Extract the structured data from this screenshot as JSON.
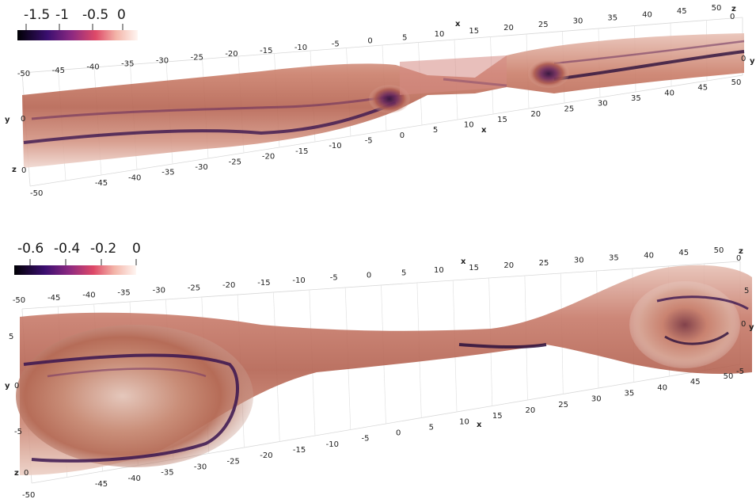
{
  "top": {
    "colorbar": {
      "ticks": [
        "-1.5",
        "-1",
        "-0.5",
        "0"
      ]
    },
    "x_ticks_top": [
      "-50",
      "-45",
      "-40",
      "-35",
      "-30",
      "-25",
      "-20",
      "-15",
      "-10",
      "-5",
      "0",
      "5",
      "10",
      "15",
      "20",
      "25",
      "30",
      "35",
      "40",
      "45",
      "50"
    ],
    "x_ticks_bottom": [
      "-45",
      "-40",
      "-35",
      "-30",
      "-25",
      "-20",
      "-15",
      "-10",
      "-5",
      "0",
      "5",
      "10",
      "15",
      "20",
      "25",
      "30",
      "35",
      "40",
      "45",
      "50"
    ],
    "x_label": "x",
    "y_label": "y",
    "z_label": "z",
    "y_ticks": [
      "0"
    ],
    "z_ticks": [
      "0"
    ],
    "bottom_left_tick": "-50"
  },
  "bottom": {
    "colorbar": {
      "ticks": [
        "-0.6",
        "-0.4",
        "-0.2",
        "0"
      ]
    },
    "x_ticks_top": [
      "-50",
      "-45",
      "-40",
      "-35",
      "-30",
      "-25",
      "-20",
      "-15",
      "-10",
      "-5",
      "0",
      "5",
      "10",
      "15",
      "20",
      "25",
      "30",
      "35",
      "40",
      "45",
      "50"
    ],
    "x_ticks_bottom": [
      "-45",
      "-40",
      "-35",
      "-30",
      "-25",
      "-20",
      "-15",
      "-10",
      "-5",
      "0",
      "5",
      "10",
      "15",
      "20",
      "25",
      "30",
      "35",
      "40",
      "45",
      "50"
    ],
    "x_label": "x",
    "y_label": "y",
    "z_label": "z",
    "y_ticks": [
      "5",
      "0",
      "-5"
    ],
    "right_y_ticks": [
      "5",
      "0",
      "-5"
    ],
    "z_ticks": [
      "0"
    ],
    "bottom_left_tick": "-50"
  },
  "colors": {
    "cmap": [
      "#000004",
      "#3b0f70",
      "#8c2981",
      "#de4968",
      "#fe9f6d",
      "#fcfdbf"
    ],
    "flesh": "#c8786a",
    "dark_core": "#3a1a4a"
  }
}
